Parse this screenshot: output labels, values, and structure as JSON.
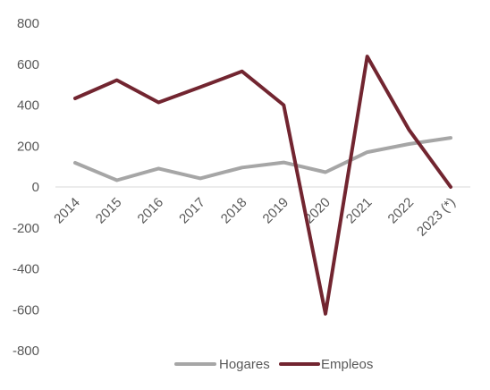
{
  "chart_data": {
    "type": "line",
    "categories": [
      "2014",
      "2015",
      "2016",
      "2017",
      "2018",
      "2019",
      "2020",
      "2021",
      "2022",
      "2023 (*)"
    ],
    "series": [
      {
        "name": "Hogares",
        "color": "#A6A6A6",
        "values": [
          118,
          33,
          90,
          42,
          95,
          120,
          72,
          170,
          210,
          240
        ]
      },
      {
        "name": "Empleos",
        "color": "#722530",
        "values": [
          433,
          522,
          413,
          488,
          565,
          400,
          -620,
          638,
          280,
          0
        ]
      }
    ],
    "ylim": [
      -800,
      800
    ],
    "yticks": [
      "800",
      "600",
      "400",
      "200",
      "0",
      "-200",
      "-400",
      "-600",
      "-800"
    ],
    "ytick_values": [
      800,
      600,
      400,
      200,
      0,
      -200,
      -400,
      -600,
      -800
    ],
    "grid": false,
    "legend": "bottom"
  }
}
